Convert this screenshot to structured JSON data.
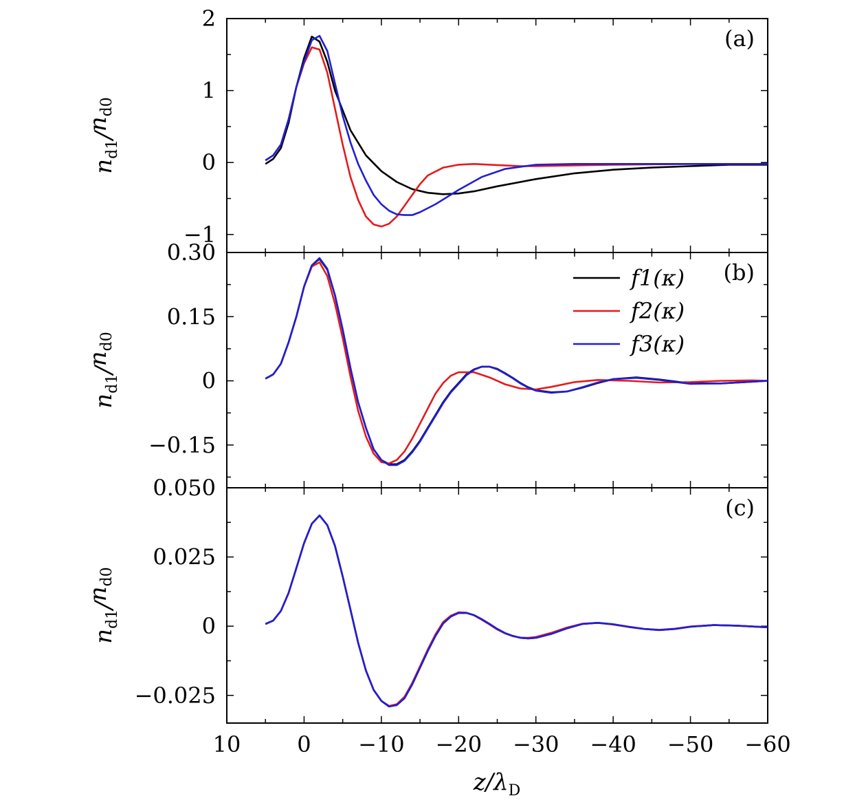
{
  "chart_data": {
    "type": "line",
    "shared_x": {
      "label": "z/λD",
      "xlim": [
        10,
        -60
      ],
      "ticks": [
        10,
        0,
        -10,
        -20,
        -30,
        -40,
        -50,
        -60
      ],
      "tick_labels": [
        "10",
        "0",
        "−10",
        "−20",
        "−30",
        "−40",
        "−50",
        "−60"
      ]
    },
    "legend": {
      "placement": "top-right of panel (b)",
      "entries": [
        {
          "label": "f1(κ)",
          "color": "#000000"
        },
        {
          "label": "f2(κ)",
          "color": "#e41a1c"
        },
        {
          "label": "f3(κ)",
          "color": "#1f1fd6"
        }
      ]
    },
    "panels": [
      {
        "label": "(a)",
        "ylabel": "nd1/nd0",
        "ylim": [
          -1.25,
          2.0
        ],
        "yticks": [
          -1,
          0,
          1,
          2
        ],
        "ytick_labels": [
          "−1",
          "0",
          "1",
          "2"
        ],
        "series": [
          {
            "name": "f1(κ)",
            "color": "#000000",
            "x": [
              5,
              4,
              3,
              2,
              1,
              0,
              -1,
              -2,
              -3,
              -4,
              -6,
              -8,
              -10,
              -12,
              -14,
              -16,
              -18,
              -20,
              -22,
              -25,
              -30,
              -35,
              -40,
              -45,
              -50,
              -55,
              -60
            ],
            "y": [
              -0.02,
              0.05,
              0.2,
              0.55,
              1.05,
              1.45,
              1.75,
              1.68,
              1.4,
              1.0,
              0.45,
              0.1,
              -0.12,
              -0.27,
              -0.37,
              -0.42,
              -0.44,
              -0.43,
              -0.4,
              -0.33,
              -0.23,
              -0.15,
              -0.1,
              -0.07,
              -0.05,
              -0.03,
              -0.03
            ]
          },
          {
            "name": "f2(κ)",
            "color": "#e41a1c",
            "x": [
              5,
              4,
              3,
              2,
              1,
              0,
              -1,
              -2,
              -3,
              -4,
              -5,
              -6,
              -7,
              -8,
              -9,
              -10,
              -11,
              -12,
              -13,
              -14,
              -15,
              -16,
              -18,
              -20,
              -22,
              -24,
              -26,
              -28,
              -30,
              -35,
              -40,
              -50,
              -60
            ],
            "y": [
              0.03,
              0.1,
              0.25,
              0.6,
              1.05,
              1.38,
              1.6,
              1.57,
              1.25,
              0.75,
              0.25,
              -0.2,
              -0.52,
              -0.75,
              -0.86,
              -0.89,
              -0.85,
              -0.75,
              -0.6,
              -0.45,
              -0.3,
              -0.18,
              -0.07,
              -0.03,
              -0.02,
              -0.03,
              -0.04,
              -0.05,
              -0.05,
              -0.04,
              -0.03,
              -0.02,
              -0.02
            ]
          },
          {
            "name": "f3(κ)",
            "color": "#1f1fd6",
            "x": [
              5,
              4,
              3,
              2,
              1,
              0,
              -1,
              -2,
              -3,
              -4,
              -5,
              -6,
              -7,
              -8,
              -9,
              -10,
              -11,
              -12,
              -13,
              -14,
              -15,
              -17,
              -20,
              -23,
              -26,
              -30,
              -35,
              -40,
              -50,
              -60
            ],
            "y": [
              0.03,
              0.1,
              0.25,
              0.6,
              1.05,
              1.4,
              1.7,
              1.76,
              1.55,
              1.1,
              0.65,
              0.28,
              -0.02,
              -0.25,
              -0.45,
              -0.58,
              -0.67,
              -0.72,
              -0.73,
              -0.73,
              -0.69,
              -0.58,
              -0.38,
              -0.2,
              -0.09,
              -0.03,
              -0.02,
              -0.02,
              -0.02,
              -0.02
            ]
          }
        ]
      },
      {
        "label": "(b)",
        "ylabel": "nd1/nd0",
        "ylim": [
          -0.25,
          0.3
        ],
        "yticks": [
          -0.15,
          0,
          0.15,
          0.3
        ],
        "ytick_labels": [
          "−0.15",
          "0",
          "0.15",
          "0.30"
        ],
        "series": [
          {
            "name": "f1(κ)",
            "color": "#000000",
            "x": [
              5,
              4,
              3,
              2,
              1,
              0,
              -1,
              -2,
              -3,
              -4,
              -5,
              -6,
              -7,
              -8,
              -9,
              -10,
              -11,
              -12,
              -13,
              -14,
              -15,
              -16,
              -17,
              -18,
              -19,
              -20,
              -21,
              -22,
              -23,
              -24,
              -25,
              -26,
              -27,
              -28,
              -29,
              -30,
              -32,
              -34,
              -36,
              -38,
              -40,
              -43,
              -46,
              -50,
              -54,
              -58,
              -60
            ],
            "y": [
              0.005,
              0.015,
              0.04,
              0.09,
              0.15,
              0.22,
              0.27,
              0.285,
              0.26,
              0.2,
              0.12,
              0.03,
              -0.05,
              -0.11,
              -0.16,
              -0.185,
              -0.195,
              -0.195,
              -0.185,
              -0.165,
              -0.14,
              -0.11,
              -0.08,
              -0.05,
              -0.025,
              -0.005,
              0.015,
              0.027,
              0.033,
              0.033,
              0.028,
              0.018,
              0.007,
              -0.005,
              -0.015,
              -0.022,
              -0.027,
              -0.025,
              -0.016,
              -0.005,
              0.004,
              0.008,
              0.003,
              -0.006,
              -0.006,
              -0.002,
              0.0
            ]
          },
          {
            "name": "f2(κ)",
            "color": "#e41a1c",
            "x": [
              5,
              4,
              3,
              2,
              1,
              0,
              -1,
              -2,
              -3,
              -4,
              -5,
              -6,
              -7,
              -8,
              -9,
              -10,
              -11,
              -12,
              -13,
              -14,
              -15,
              -16,
              -17,
              -18,
              -19,
              -20,
              -22,
              -24,
              -26,
              -28,
              -30,
              -32,
              -35,
              -38,
              -42,
              -46,
              -50,
              -54,
              -58,
              -60
            ],
            "y": [
              0.005,
              0.015,
              0.04,
              0.09,
              0.15,
              0.22,
              0.267,
              0.277,
              0.245,
              0.18,
              0.1,
              0.01,
              -0.07,
              -0.13,
              -0.17,
              -0.19,
              -0.193,
              -0.185,
              -0.165,
              -0.135,
              -0.1,
              -0.065,
              -0.03,
              -0.005,
              0.012,
              0.02,
              0.02,
              0.008,
              -0.008,
              -0.018,
              -0.02,
              -0.014,
              -0.003,
              0.002,
              0.0,
              -0.004,
              -0.003,
              0.0,
              0.001,
              0.0
            ]
          },
          {
            "name": "f3(κ)",
            "color": "#1f1fd6",
            "x": [
              5,
              4,
              3,
              2,
              1,
              0,
              -1,
              -2,
              -3,
              -4,
              -5,
              -6,
              -7,
              -8,
              -9,
              -10,
              -11,
              -12,
              -13,
              -14,
              -15,
              -16,
              -17,
              -18,
              -19,
              -20,
              -21,
              -22,
              -23,
              -24,
              -25,
              -26,
              -27,
              -28,
              -29,
              -30,
              -32,
              -34,
              -36,
              -38,
              -40,
              -43,
              -46,
              -50,
              -54,
              -58,
              -60
            ],
            "y": [
              0.005,
              0.015,
              0.04,
              0.09,
              0.15,
              0.22,
              0.27,
              0.287,
              0.262,
              0.2,
              0.12,
              0.03,
              -0.05,
              -0.11,
              -0.16,
              -0.185,
              -0.197,
              -0.197,
              -0.187,
              -0.167,
              -0.142,
              -0.112,
              -0.082,
              -0.052,
              -0.027,
              -0.007,
              0.013,
              0.026,
              0.033,
              0.033,
              0.027,
              0.017,
              0.006,
              -0.006,
              -0.016,
              -0.023,
              -0.028,
              -0.025,
              -0.015,
              -0.004,
              0.004,
              0.007,
              0.002,
              -0.007,
              -0.006,
              -0.002,
              0.0
            ]
          }
        ]
      },
      {
        "label": "(c)",
        "ylabel": "nd1/nd0",
        "ylim": [
          -0.035,
          0.05
        ],
        "yticks": [
          -0.025,
          0,
          0.025,
          0.05
        ],
        "ytick_labels": [
          "−0.025",
          "0",
          "0.025",
          "0.050"
        ],
        "series": [
          {
            "name": "f1(κ)",
            "color": "#000000",
            "x": [
              5,
              4,
              3,
              2,
              1,
              0,
              -1,
              -2,
              -3,
              -4,
              -5,
              -6,
              -7,
              -8,
              -9,
              -10,
              -11,
              -12,
              -13,
              -14,
              -15,
              -16,
              -17,
              -18,
              -19,
              -20,
              -21,
              -22,
              -23,
              -24,
              -25,
              -26,
              -27,
              -28,
              -29,
              -30,
              -32,
              -34,
              -36,
              -38,
              -40,
              -42,
              -44,
              -46,
              -48,
              -50,
              -53,
              -56,
              -60
            ],
            "y": [
              0.0008,
              0.002,
              0.0055,
              0.012,
              0.021,
              0.03,
              0.037,
              0.04,
              0.0365,
              0.029,
              0.018,
              0.006,
              -0.006,
              -0.016,
              -0.023,
              -0.027,
              -0.029,
              -0.0285,
              -0.026,
              -0.021,
              -0.015,
              -0.009,
              -0.0035,
              0.001,
              0.0035,
              0.0048,
              0.0048,
              0.004,
              0.0025,
              0.0008,
              -0.001,
              -0.0025,
              -0.0035,
              -0.0042,
              -0.0044,
              -0.0042,
              -0.0028,
              -0.0008,
              0.0008,
              0.0012,
              0.0007,
              -0.0002,
              -0.001,
              -0.0014,
              -0.001,
              -0.0002,
              0.0004,
              0.0002,
              -0.0004
            ]
          },
          {
            "name": "f2(κ)",
            "color": "#e41a1c",
            "x": [
              5,
              4,
              3,
              2,
              1,
              0,
              -1,
              -2,
              -3,
              -4,
              -5,
              -6,
              -7,
              -8,
              -9,
              -10,
              -11,
              -12,
              -13,
              -14,
              -15,
              -16,
              -17,
              -18,
              -19,
              -20,
              -21,
              -22,
              -23,
              -24,
              -25,
              -26,
              -27,
              -28,
              -29,
              -30,
              -32,
              -34,
              -36,
              -38,
              -40,
              -42,
              -44,
              -46,
              -48,
              -50,
              -53,
              -56,
              -60
            ],
            "y": [
              0.0008,
              0.002,
              0.0055,
              0.012,
              0.021,
              0.03,
              0.037,
              0.04,
              0.0365,
              0.029,
              0.018,
              0.006,
              -0.006,
              -0.016,
              -0.023,
              -0.027,
              -0.0288,
              -0.0282,
              -0.0255,
              -0.0205,
              -0.0145,
              -0.0085,
              -0.003,
              0.0015,
              0.0038,
              0.005,
              0.0049,
              0.0039,
              0.0023,
              0.0006,
              -0.0012,
              -0.0026,
              -0.0036,
              -0.0041,
              -0.0042,
              -0.0039,
              -0.0024,
              -0.0005,
              0.0009,
              0.0012,
              0.0006,
              -0.0003,
              -0.001,
              -0.0013,
              -0.0009,
              -0.0001,
              0.0004,
              0.0002,
              -0.0004
            ]
          },
          {
            "name": "f3(κ)",
            "color": "#1f1fd6",
            "x": [
              5,
              4,
              3,
              2,
              1,
              0,
              -1,
              -2,
              -3,
              -4,
              -5,
              -6,
              -7,
              -8,
              -9,
              -10,
              -11,
              -12,
              -13,
              -14,
              -15,
              -16,
              -17,
              -18,
              -19,
              -20,
              -21,
              -22,
              -23,
              -24,
              -25,
              -26,
              -27,
              -28,
              -29,
              -30,
              -32,
              -34,
              -36,
              -38,
              -40,
              -42,
              -44,
              -46,
              -48,
              -50,
              -53,
              -56,
              -60
            ],
            "y": [
              0.0008,
              0.002,
              0.0055,
              0.012,
              0.021,
              0.03,
              0.037,
              0.04,
              0.0365,
              0.029,
              0.018,
              0.006,
              -0.006,
              -0.016,
              -0.023,
              -0.027,
              -0.029,
              -0.0285,
              -0.026,
              -0.021,
              -0.015,
              -0.009,
              -0.0035,
              0.001,
              0.0035,
              0.0048,
              0.0048,
              0.004,
              0.0025,
              0.0008,
              -0.001,
              -0.0025,
              -0.0035,
              -0.0042,
              -0.0044,
              -0.0042,
              -0.0028,
              -0.0008,
              0.0008,
              0.0012,
              0.0007,
              -0.0002,
              -0.001,
              -0.0014,
              -0.001,
              -0.0002,
              0.0004,
              0.0002,
              -0.0004
            ]
          }
        ]
      }
    ]
  }
}
